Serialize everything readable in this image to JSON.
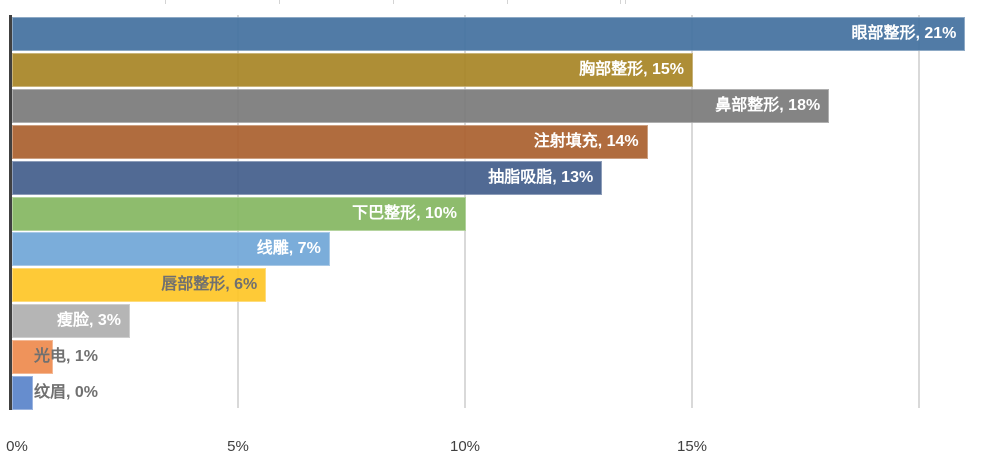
{
  "chart_data": {
    "type": "bar",
    "orientation": "horizontal",
    "title": "",
    "xlabel": "",
    "ylabel": "",
    "xlim": [
      0,
      21
    ],
    "grid": true,
    "legend": null,
    "categories": [
      "眼部整形",
      "胸部整形",
      "鼻部整形",
      "注射填充",
      "抽脂吸脂",
      "下巴整形",
      "线雕",
      "唇部整形",
      "瘦脸",
      "光电",
      "纹眉"
    ],
    "values": [
      21,
      15,
      18,
      14,
      13,
      10,
      7,
      5.6,
      2.6,
      0.9,
      0.46
    ],
    "data_labels": [
      "眼部整形, 21%",
      "胸部整形, 15%",
      "鼻部整形, 18%",
      "注射填充, 14%",
      "抽脂吸脂, 13%",
      "下巴整形, 10%",
      "线雕, 7%",
      "唇部整形, 6%",
      "瘦脸, 3%",
      "光电, 1%",
      "纹眉, 0%"
    ],
    "colors": [
      "#4472a0",
      "#a88627",
      "#7b7b7b",
      "#ab6130",
      "#445f8c",
      "#86b862",
      "#72a7d8",
      "#fec628",
      "#b0b0b0",
      "#ee8b4f",
      "#5b85cb"
    ],
    "label_colors": [
      "#ffffff",
      "#ffffff",
      "#ffffff",
      "#ffffff",
      "#ffffff",
      "#ffffff",
      "#ffffff",
      "#707070",
      "#ffffff",
      "#707070",
      "#707070"
    ],
    "x_ticks": [
      "0%",
      "5%",
      "10%",
      "15%"
    ],
    "x_tick_values": [
      0,
      5,
      10,
      15
    ]
  }
}
